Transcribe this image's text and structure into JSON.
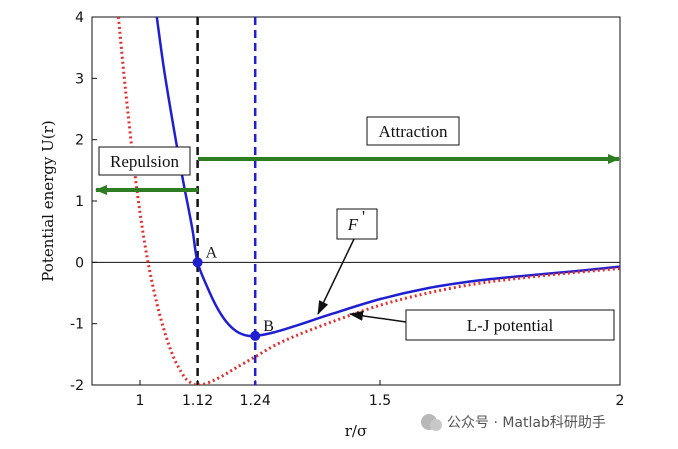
{
  "chart_data": {
    "type": "line",
    "xlabel": "r/σ",
    "ylabel": "Potential energy U(r)",
    "xlim": [
      0.9,
      2.0
    ],
    "ylim": [
      -2,
      4
    ],
    "x_ticks": [
      {
        "value": 1.0,
        "label": "1"
      },
      {
        "value": 1.12,
        "label": "1.12"
      },
      {
        "value": 1.24,
        "label": "1.24"
      },
      {
        "value": 1.5,
        "label": "1.5"
      },
      {
        "value": 2.0,
        "label": "2"
      }
    ],
    "y_ticks": [
      {
        "value": -2,
        "label": "-2"
      },
      {
        "value": -1,
        "label": "-1"
      },
      {
        "value": 0,
        "label": "0"
      },
      {
        "value": 1,
        "label": "1"
      },
      {
        "value": 2,
        "label": "2"
      },
      {
        "value": 3,
        "label": "3"
      },
      {
        "value": 4,
        "label": "4"
      }
    ],
    "grid": false,
    "series": [
      {
        "key": "blue",
        "color": "#1f1fd0",
        "style": "solid",
        "x": [
          1.035,
          1.05,
          1.07,
          1.09,
          1.1,
          1.11,
          1.12,
          1.14,
          1.16,
          1.18,
          1.2,
          1.22,
          1.24,
          1.28,
          1.33,
          1.4,
          1.5,
          1.6,
          1.7,
          1.8,
          1.9,
          2.0
        ],
        "y": [
          4.0,
          3.15,
          2.2,
          1.32,
          0.92,
          0.5,
          0.0,
          -0.4,
          -0.73,
          -0.97,
          -1.12,
          -1.19,
          -1.2,
          -1.14,
          -1.02,
          -0.84,
          -0.6,
          -0.42,
          -0.3,
          -0.22,
          -0.15,
          -0.07
        ]
      },
      {
        "key": "red",
        "color": "#e03030",
        "style": "dotted",
        "x": [
          0.955,
          0.97,
          0.99,
          1.01,
          1.03,
          1.05,
          1.07,
          1.09,
          1.1,
          1.11,
          1.12,
          1.14,
          1.17,
          1.2,
          1.24,
          1.3,
          1.4,
          1.5,
          1.6,
          1.7,
          1.8,
          1.9,
          2.0
        ],
        "y": [
          4.0,
          2.8,
          1.4,
          0.3,
          -0.5,
          -1.1,
          -1.55,
          -1.84,
          -1.93,
          -1.98,
          -2.0,
          -1.97,
          -1.86,
          -1.72,
          -1.54,
          -1.28,
          -0.97,
          -0.7,
          -0.5,
          -0.35,
          -0.25,
          -0.17,
          -0.1
        ]
      }
    ],
    "vertical_lines": [
      {
        "x": 1.12,
        "color": "#111111",
        "style": "dashed"
      },
      {
        "x": 1.24,
        "color": "#1f1fd0",
        "style": "dashed"
      }
    ],
    "points": [
      {
        "label": "A",
        "x": 1.12,
        "y": 0.0
      },
      {
        "label": "B",
        "x": 1.24,
        "y": -1.2
      }
    ],
    "annotations": {
      "repulsion": "Repulsion",
      "attraction": "Attraction",
      "force_label": "F",
      "force_mark": "'",
      "lj_label": "L-J potential"
    },
    "arrow_color": "#2e7d22"
  },
  "watermark": {
    "text": "公众号 · Matlab科研助手"
  }
}
